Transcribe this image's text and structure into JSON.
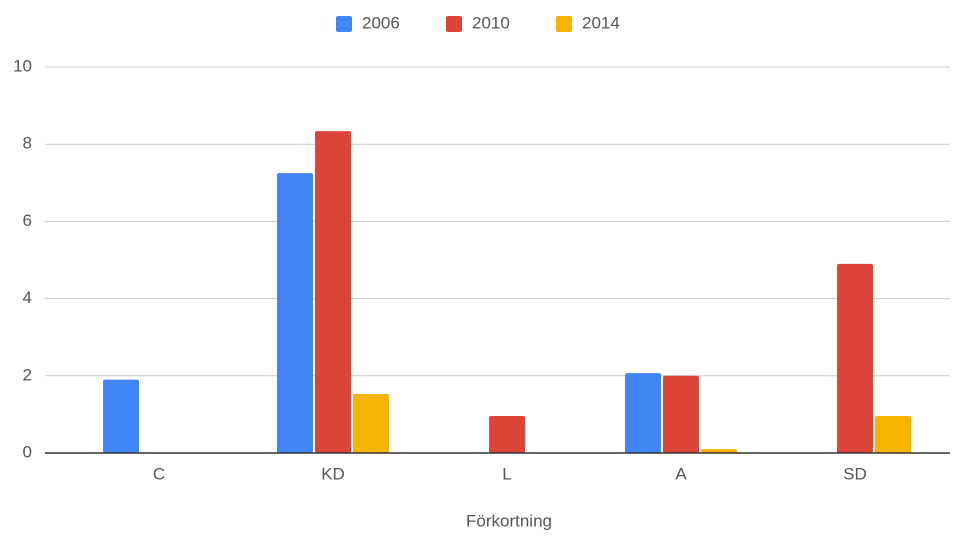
{
  "chart_data": {
    "type": "bar",
    "x_label": "Förkortning",
    "categories": [
      "C",
      "KD",
      "L",
      "A",
      "SD"
    ],
    "series": [
      {
        "name": "2006",
        "color": "#4285f4",
        "values": [
          1.9,
          7.25,
          null,
          2.07,
          null
        ]
      },
      {
        "name": "2010",
        "color": "#db4437",
        "values": [
          null,
          8.34,
          0.96,
          2.0,
          4.9
        ]
      },
      {
        "name": "2014",
        "color": "#f4b400",
        "values": [
          null,
          1.53,
          null,
          0.1,
          0.96
        ]
      }
    ],
    "ylim": [
      0,
      10
    ],
    "yticks": [
      0,
      2,
      4,
      6,
      8,
      10
    ],
    "grid": true,
    "legend": "top"
  }
}
